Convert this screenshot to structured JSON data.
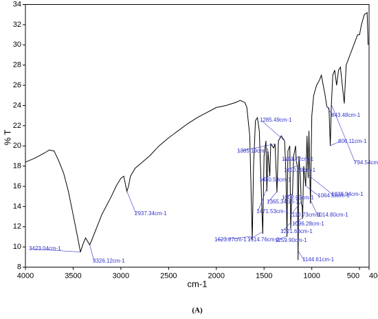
{
  "chart_data": {
    "type": "line",
    "x_label": "cm-1",
    "y_label": "% T",
    "caption": "(A)",
    "color": "#000000",
    "annotation_color": "#3333cc",
    "xlim": [
      4000,
      400
    ],
    "ylim": [
      8,
      34
    ],
    "xticks": [
      4000,
      3500,
      3000,
      2500,
      2000,
      1500,
      1000,
      500,
      400
    ],
    "yticks": [
      8,
      10,
      12,
      14,
      16,
      18,
      20,
      22,
      24,
      26,
      28,
      30,
      32,
      34
    ],
    "x": [
      4000,
      3900,
      3800,
      3750,
      3700,
      3650,
      3600,
      3550,
      3500,
      3450,
      3423,
      3400,
      3370,
      3326,
      3300,
      3250,
      3200,
      3100,
      3050,
      3000,
      2970,
      2937,
      2920,
      2900,
      2850,
      2800,
      2700,
      2600,
      2500,
      2400,
      2300,
      2200,
      2100,
      2000,
      1900,
      1800,
      1750,
      1700,
      1680,
      1650,
      1623,
      1610,
      1590,
      1570,
      1550,
      1514,
      1500,
      1480,
      1471,
      1460,
      1440,
      1430,
      1400,
      1385,
      1365,
      1350,
      1320,
      1285,
      1270,
      1260,
      1250,
      1230,
      1221,
      1210,
      1202,
      1190,
      1170,
      1163,
      1150,
      1144,
      1135,
      1120,
      1110,
      1100,
      1096,
      1085,
      1064,
      1050,
      1038,
      1030,
      1014,
      1000,
      980,
      950,
      920,
      900,
      880,
      860,
      843,
      820,
      806,
      795,
      780,
      760,
      740,
      720,
      700,
      680,
      660,
      640,
      600,
      560,
      520,
      500,
      480,
      450,
      420,
      410
    ],
    "values": [
      18.4,
      18.8,
      19.3,
      19.6,
      19.5,
      18.5,
      17.3,
      15.5,
      13.2,
      10.8,
      9.5,
      10.2,
      10.9,
      10.2,
      10.8,
      12.0,
      13.2,
      15.0,
      16.0,
      16.8,
      17.0,
      15.5,
      16.0,
      17.0,
      17.8,
      18.2,
      19.0,
      20.0,
      20.8,
      21.5,
      22.2,
      22.8,
      23.3,
      23.8,
      24.0,
      24.3,
      24.5,
      24.3,
      23.8,
      21,
      10.7,
      18,
      22.5,
      22.8,
      21.5,
      11.3,
      19,
      20.5,
      15.5,
      19.5,
      17,
      20.2,
      19.8,
      20.2,
      15.4,
      20.5,
      21,
      20.5,
      17,
      11,
      19.5,
      20,
      11.8,
      15,
      15.3,
      19,
      20,
      18.5,
      18,
      8.7,
      19,
      17,
      14.3,
      14,
      12.8,
      18,
      16,
      21,
      16.8,
      21.5,
      14.3,
      23,
      25,
      26,
      26.5,
      27,
      26,
      25,
      23.9,
      23.7,
      20,
      24,
      27,
      27.5,
      26,
      27.5,
      27.8,
      26,
      24.2,
      28,
      29,
      30,
      31,
      31,
      32,
      33,
      33.2,
      30
    ],
    "annotations": [
      {
        "text": "3423.04cm-1",
        "x": 3423.04
      },
      {
        "text": "3326.12cm-1",
        "x": 3326.12
      },
      {
        "text": "2937.34cm-1",
        "x": 2937.34
      },
      {
        "text": "1623.87cm-1",
        "x": 1623.87
      },
      {
        "text": "1514.76cm-1",
        "x": 1514.76
      },
      {
        "text": "1471.53cm-1",
        "x": 1471.53
      },
      {
        "text": "1440.58cm-1",
        "x": 1440.58
      },
      {
        "text": "1385.19cm-1",
        "x": 1385.19
      },
      {
        "text": "1365.34cm-1",
        "x": 1365.34
      },
      {
        "text": "1285.49cm-1",
        "x": 1285.49
      },
      {
        "text": "1259.90cm-1",
        "x": 1259.9
      },
      {
        "text": "1221.66cm-1",
        "x": 1221.66
      },
      {
        "text": "1202.93cm-1",
        "x": 1202.93
      },
      {
        "text": "1163.72cm-1",
        "x": 1163.72
      },
      {
        "text": "1150.79cm-1",
        "x": 1150.79
      },
      {
        "text": "1110.73cm-1",
        "x": 1110.73
      },
      {
        "text": "1096.28cm-1",
        "x": 1096.28
      },
      {
        "text": "1144.61cm-1",
        "x": 1144.61
      },
      {
        "text": "1064.58cm-1",
        "x": 1064.58
      },
      {
        "text": "1038.94cm-1",
        "x": 1038.94
      },
      {
        "text": "1014.80cm-1",
        "x": 1014.8
      },
      {
        "text": "843.48cm-1",
        "x": 843.48
      },
      {
        "text": "806.11cm-1",
        "x": 806.11
      },
      {
        "text": "794.54cm-1",
        "x": 794.54
      }
    ]
  }
}
